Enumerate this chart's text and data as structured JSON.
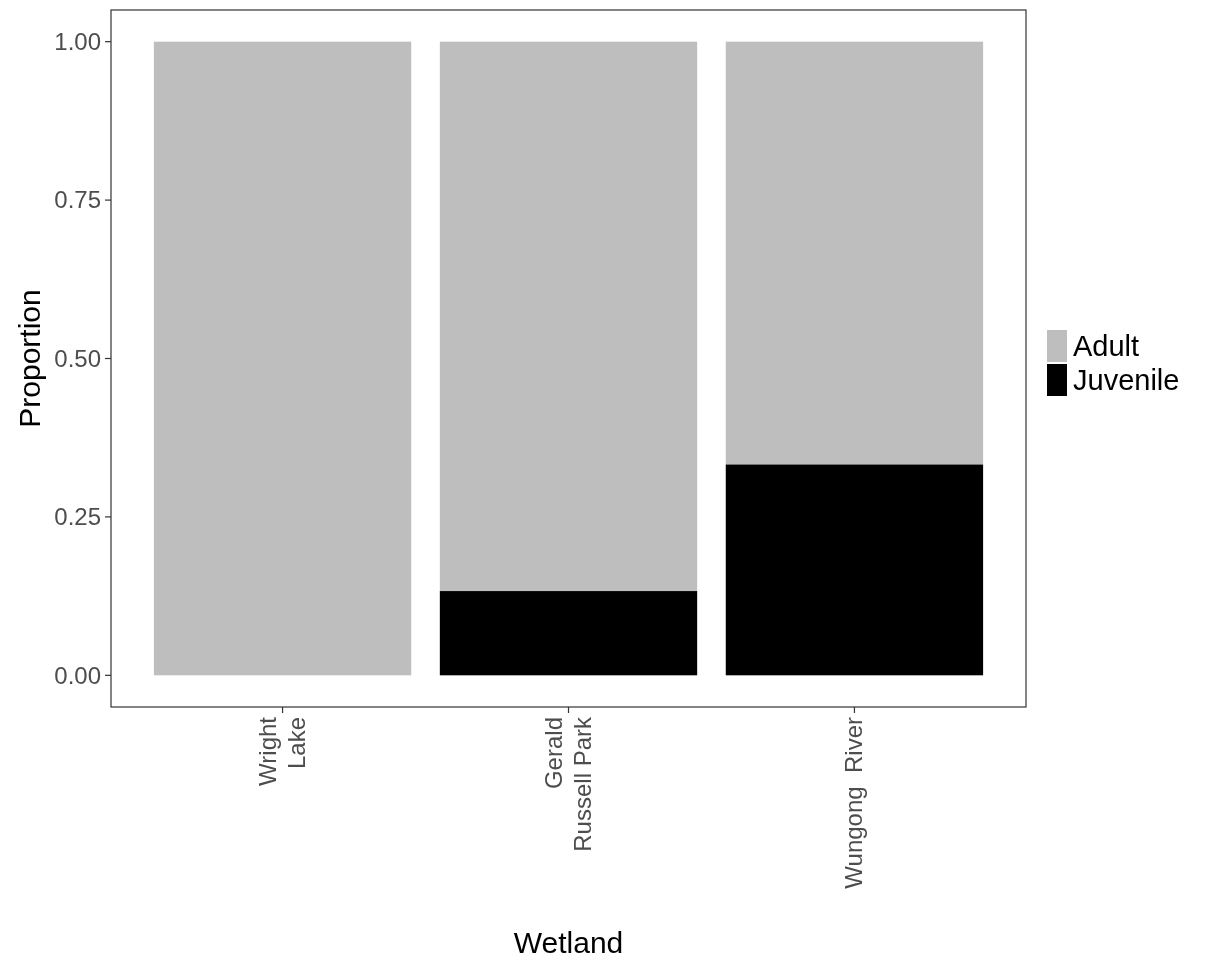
{
  "chart_data": {
    "type": "bar",
    "xlabel": "Wetland",
    "ylabel": "Proportion",
    "categories": [
      "Wright\nLake",
      "Gerald\nRussell Park",
      "Wungong  River"
    ],
    "stacked": true,
    "series": [
      {
        "name": "Juvenile",
        "color": "#000000",
        "values": [
          0,
          0.133,
          0.333
        ]
      },
      {
        "name": "Adult",
        "color": "#bebebe",
        "values": [
          1,
          0.867,
          0.667
        ]
      }
    ],
    "ylim": [
      -0.05,
      1.05
    ],
    "yticks": [
      {
        "value": 0,
        "label": "0.00"
      },
      {
        "value": 0.25,
        "label": "0.25"
      },
      {
        "value": 0.5,
        "label": "0.50"
      },
      {
        "value": 0.75,
        "label": "0.75"
      },
      {
        "value": 1,
        "label": "1.00"
      }
    ],
    "grid": false,
    "legend": "right"
  }
}
